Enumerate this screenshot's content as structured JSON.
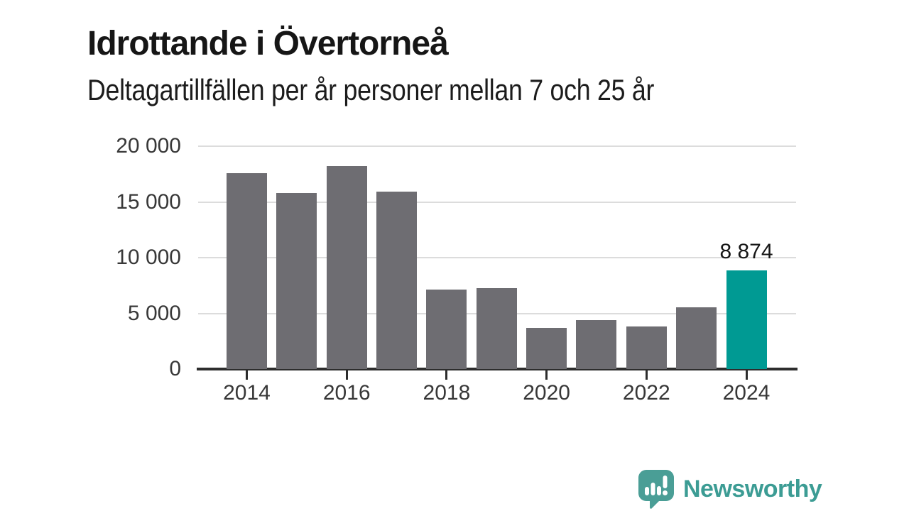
{
  "header": {
    "title": "Idrottande i Övertorneå",
    "subtitle": "Deltagartillfällen per år personer mellan 7 och 25 år"
  },
  "chart_data": {
    "type": "bar",
    "title": "Idrottande i Övertorneå",
    "subtitle": "Deltagartillfällen per år personer mellan 7 och 25 år",
    "categories": [
      2014,
      2015,
      2016,
      2017,
      2018,
      2019,
      2020,
      2021,
      2022,
      2023,
      2024
    ],
    "values": [
      17600,
      15800,
      18200,
      15900,
      7150,
      7250,
      3700,
      4400,
      3850,
      5550,
      8874
    ],
    "highlight": {
      "category": 2024,
      "value": 8874,
      "label": "8 874"
    },
    "bar_color": "#6e6d72",
    "highlight_color": "#009a93",
    "ylim": [
      0,
      20000
    ],
    "yticks": [
      {
        "value": 0,
        "label": "0"
      },
      {
        "value": 5000,
        "label": "5 000"
      },
      {
        "value": 10000,
        "label": "10 000"
      },
      {
        "value": 15000,
        "label": "15 000"
      },
      {
        "value": 20000,
        "label": "20 000"
      }
    ],
    "xticks": [
      {
        "year": 2014,
        "label": "2014"
      },
      {
        "year": 2016,
        "label": "2016"
      },
      {
        "year": 2018,
        "label": "2018"
      },
      {
        "year": 2020,
        "label": "2020"
      },
      {
        "year": 2022,
        "label": "2022"
      },
      {
        "year": 2024,
        "label": "2024"
      }
    ],
    "grid": "horizontal",
    "legend": false,
    "axis_color": "#2d2d2d",
    "gridline_color": "#dcdcdc",
    "tick_label_color": "#383838"
  },
  "footer": {
    "brand": "Newsworthy",
    "brand_color": "#3c9c94",
    "logo_icon": "newsworthy-speech-bubble-chart-icon"
  }
}
